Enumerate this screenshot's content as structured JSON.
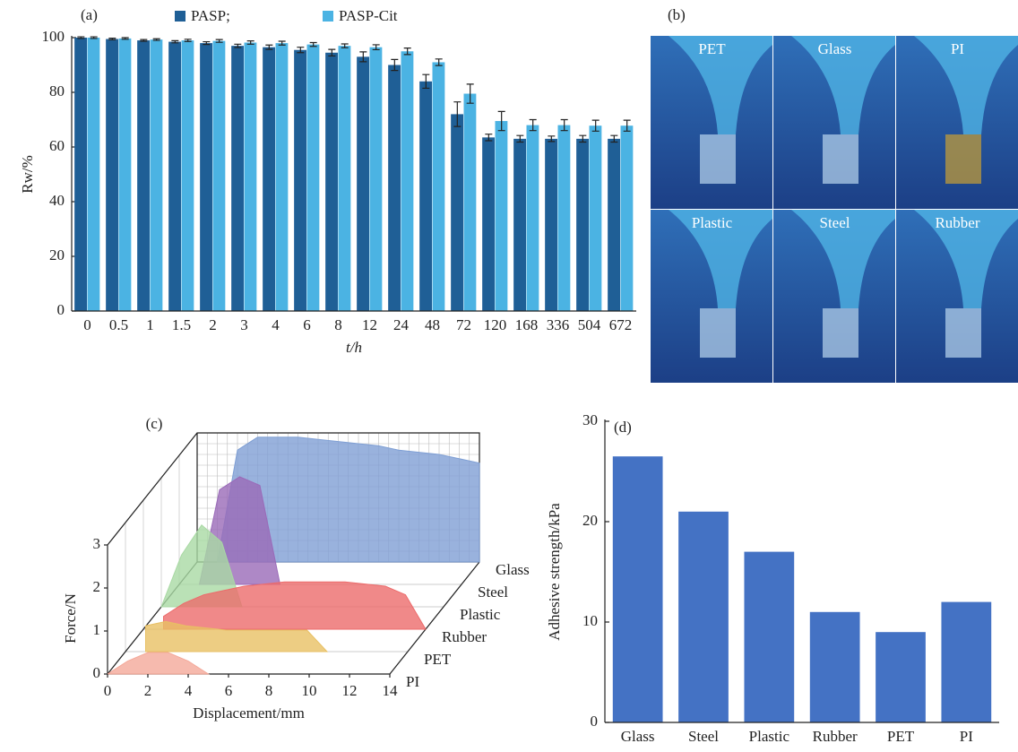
{
  "chart_data": [
    {
      "type": "bar",
      "label": "(a)",
      "xlabel": "t/h",
      "ylabel": "Rw/%",
      "categories": [
        "0",
        "0.5",
        "1",
        "1.5",
        "2",
        "3",
        "4",
        "6",
        "8",
        "12",
        "24",
        "48",
        "72",
        "120",
        "168",
        "336",
        "504",
        "672"
      ],
      "series": [
        {
          "name": "PASP;",
          "color": "#1f5f96",
          "values": [
            100,
            99.5,
            99,
            98.5,
            98,
            97,
            96.5,
            95.5,
            94.5,
            93,
            90,
            84,
            72,
            63.5,
            63,
            63,
            63,
            63
          ],
          "errors": [
            0.3,
            0.3,
            0.3,
            0.4,
            0.5,
            0.6,
            0.8,
            1,
            1.2,
            1.8,
            2,
            2.5,
            4.5,
            1.2,
            1.2,
            1,
            1.2,
            1.2
          ]
        },
        {
          "name": "PASP-Cit",
          "color": "#4bb3e3",
          "values": [
            100,
            99.7,
            99.3,
            99,
            98.8,
            98.2,
            98,
            97.5,
            97,
            96.5,
            95,
            91,
            79.5,
            69.5,
            68,
            68,
            67.8,
            67.8
          ],
          "errors": [
            0.3,
            0.3,
            0.3,
            0.4,
            0.5,
            0.6,
            0.7,
            0.7,
            0.7,
            0.9,
            1.2,
            1.2,
            3.5,
            3.5,
            2,
            2,
            2,
            2
          ]
        }
      ],
      "ylim": [
        0,
        100
      ],
      "yticks": [
        0,
        20,
        40,
        60,
        80,
        100
      ],
      "legend": "top"
    },
    {
      "type": "area3d",
      "label": "(c)",
      "xlabel": "Displacement/mm",
      "ylabel": "Force/N",
      "x": [
        0,
        1,
        2,
        3,
        4,
        5,
        6,
        7,
        8,
        9,
        10,
        11,
        12,
        13,
        14
      ],
      "series": [
        {
          "name": "PI",
          "color": "#f4a99a",
          "values": [
            0,
            0.3,
            0.5,
            0.5,
            0.3,
            0,
            null,
            null,
            null,
            null,
            null,
            null,
            null,
            null,
            null
          ]
        },
        {
          "name": "PET",
          "color": "#e8c064",
          "values": [
            null,
            0.6,
            0.7,
            0.6,
            0.55,
            0.5,
            0.5,
            0.5,
            0.5,
            0.5,
            0,
            null,
            null,
            null,
            null
          ]
        },
        {
          "name": "Rubber",
          "color": "#ec6b6b",
          "values": [
            null,
            0.3,
            0.6,
            0.8,
            0.9,
            1.0,
            1.05,
            1.1,
            1.1,
            1.1,
            1.1,
            1.05,
            1.0,
            0.8,
            0
          ]
        },
        {
          "name": "Plastic",
          "color": "#a9d9a4",
          "values": [
            0,
            1.2,
            1.9,
            1.5,
            0,
            null,
            null,
            null,
            null,
            null,
            null,
            null,
            null,
            null,
            null
          ]
        },
        {
          "name": "Steel",
          "color": "#9a6ab8",
          "values": [
            null,
            0,
            2.2,
            2.5,
            2.3,
            0,
            null,
            null,
            null,
            null,
            null,
            null,
            null,
            null,
            null
          ]
        },
        {
          "name": "Glass",
          "color": "#7f9fd4",
          "values": [
            null,
            0,
            2.6,
            2.9,
            2.9,
            2.9,
            2.85,
            2.8,
            2.75,
            2.7,
            2.6,
            2.55,
            2.5,
            2.4,
            2.3
          ]
        }
      ],
      "xlim": [
        0,
        14
      ],
      "xticks": [
        0,
        2,
        4,
        6,
        8,
        10,
        12,
        14
      ],
      "ylim": [
        0,
        3
      ],
      "yticks": [
        0,
        1,
        2,
        3
      ]
    },
    {
      "type": "bar",
      "label": "(d)",
      "ylabel": "Adhesive strength/kPa",
      "categories": [
        "Glass",
        "Steel",
        "Plastic",
        "Rubber",
        "PET",
        "PI"
      ],
      "values": [
        26.5,
        21,
        17,
        11,
        9,
        12
      ],
      "color": "#4472c4",
      "ylim": [
        0,
        30
      ],
      "yticks": [
        0,
        10,
        20,
        30
      ]
    }
  ],
  "photo_panel": {
    "label": "(b)",
    "tiles": [
      "PET",
      "Glass",
      "PI",
      "Plastic",
      "Steel",
      "Rubber"
    ]
  }
}
